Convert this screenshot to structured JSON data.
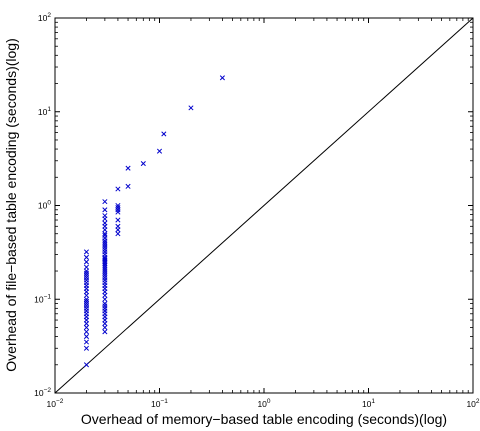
{
  "chart_data": {
    "type": "scatter",
    "xlabel": "Overhead of memory−based table encoding (seconds)(log)",
    "ylabel": "Overhead of file−based table encoding (seconds)(log)",
    "xscale": "log",
    "yscale": "log",
    "xlim": [
      0.01,
      100
    ],
    "ylim": [
      0.01,
      100
    ],
    "grid": false,
    "x_ticks": [
      {
        "value": 0.01,
        "base": "10",
        "exp": "−2"
      },
      {
        "value": 0.1,
        "base": "10",
        "exp": "−1"
      },
      {
        "value": 1,
        "base": "10",
        "exp": "0"
      },
      {
        "value": 10,
        "base": "10",
        "exp": "1"
      },
      {
        "value": 100,
        "base": "10",
        "exp": "2"
      }
    ],
    "y_ticks": [
      {
        "value": 0.01,
        "base": "10",
        "exp": "−2"
      },
      {
        "value": 0.1,
        "base": "10",
        "exp": "−1"
      },
      {
        "value": 1,
        "base": "10",
        "exp": "0"
      },
      {
        "value": 10,
        "base": "10",
        "exp": "1"
      },
      {
        "value": 100,
        "base": "10",
        "exp": "2"
      }
    ],
    "reference_line": {
      "from": [
        0.01,
        0.01
      ],
      "to": [
        100,
        100
      ],
      "color": "#000000"
    },
    "marker": {
      "symbol": "x",
      "color": "#0000cc"
    },
    "series": [
      {
        "points": [
          [
            0.02,
            0.02
          ],
          [
            0.02,
            0.03
          ],
          [
            0.02,
            0.035
          ],
          [
            0.02,
            0.04
          ],
          [
            0.02,
            0.045
          ],
          [
            0.02,
            0.05
          ],
          [
            0.02,
            0.055
          ],
          [
            0.02,
            0.06
          ],
          [
            0.02,
            0.065
          ],
          [
            0.02,
            0.07
          ],
          [
            0.02,
            0.075
          ],
          [
            0.02,
            0.08
          ],
          [
            0.02,
            0.085
          ],
          [
            0.02,
            0.09
          ],
          [
            0.02,
            0.095
          ],
          [
            0.02,
            0.1
          ],
          [
            0.02,
            0.11
          ],
          [
            0.02,
            0.12
          ],
          [
            0.02,
            0.13
          ],
          [
            0.02,
            0.14
          ],
          [
            0.02,
            0.15
          ],
          [
            0.02,
            0.16
          ],
          [
            0.02,
            0.17
          ],
          [
            0.02,
            0.18
          ],
          [
            0.02,
            0.19
          ],
          [
            0.02,
            0.2
          ],
          [
            0.02,
            0.22
          ],
          [
            0.02,
            0.25
          ],
          [
            0.02,
            0.28
          ],
          [
            0.02,
            0.32
          ],
          [
            0.03,
            0.045
          ],
          [
            0.03,
            0.05
          ],
          [
            0.03,
            0.055
          ],
          [
            0.03,
            0.06
          ],
          [
            0.03,
            0.065
          ],
          [
            0.03,
            0.07
          ],
          [
            0.03,
            0.075
          ],
          [
            0.03,
            0.08
          ],
          [
            0.03,
            0.085
          ],
          [
            0.03,
            0.09
          ],
          [
            0.03,
            0.1
          ],
          [
            0.03,
            0.11
          ],
          [
            0.03,
            0.12
          ],
          [
            0.03,
            0.13
          ],
          [
            0.03,
            0.14
          ],
          [
            0.03,
            0.15
          ],
          [
            0.03,
            0.16
          ],
          [
            0.03,
            0.17
          ],
          [
            0.03,
            0.18
          ],
          [
            0.03,
            0.19
          ],
          [
            0.03,
            0.2
          ],
          [
            0.03,
            0.21
          ],
          [
            0.03,
            0.22
          ],
          [
            0.03,
            0.23
          ],
          [
            0.03,
            0.24
          ],
          [
            0.03,
            0.25
          ],
          [
            0.03,
            0.26
          ],
          [
            0.03,
            0.27
          ],
          [
            0.03,
            0.28
          ],
          [
            0.03,
            0.3
          ],
          [
            0.03,
            0.32
          ],
          [
            0.03,
            0.34
          ],
          [
            0.03,
            0.36
          ],
          [
            0.03,
            0.38
          ],
          [
            0.03,
            0.4
          ],
          [
            0.03,
            0.42
          ],
          [
            0.03,
            0.45
          ],
          [
            0.03,
            0.48
          ],
          [
            0.03,
            0.5
          ],
          [
            0.03,
            0.55
          ],
          [
            0.03,
            0.6
          ],
          [
            0.03,
            0.65
          ],
          [
            0.03,
            0.72
          ],
          [
            0.03,
            0.78
          ],
          [
            0.03,
            0.9
          ],
          [
            0.03,
            1.1
          ],
          [
            0.04,
            0.5
          ],
          [
            0.04,
            0.55
          ],
          [
            0.04,
            0.6
          ],
          [
            0.04,
            0.7
          ],
          [
            0.04,
            0.85
          ],
          [
            0.04,
            0.9
          ],
          [
            0.04,
            0.95
          ],
          [
            0.04,
            1.0
          ],
          [
            0.04,
            1.5
          ],
          [
            0.05,
            1.6
          ],
          [
            0.05,
            2.5
          ],
          [
            0.07,
            2.8
          ],
          [
            0.1,
            3.8
          ],
          [
            0.11,
            5.8
          ],
          [
            0.2,
            11
          ],
          [
            0.4,
            23
          ]
        ]
      }
    ]
  }
}
